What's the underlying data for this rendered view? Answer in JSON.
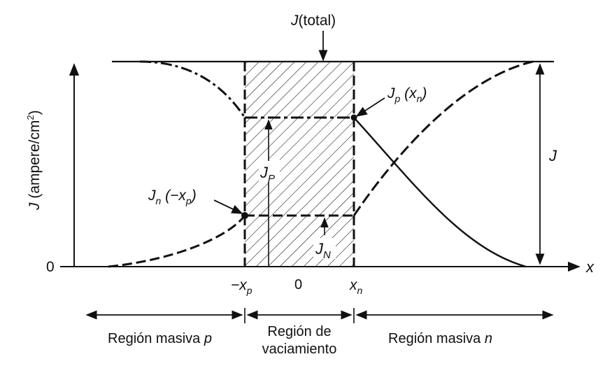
{
  "labels": {
    "j_total_italic": "J",
    "j_total_rest": "(total)",
    "y_axis_italic": "J",
    "y_axis_rest": " (ampere/cm",
    "y_axis_sup": "2",
    "y_axis_close": ")",
    "zero_y": "0",
    "x_axis": "x",
    "j_right": "J",
    "jp_main": "J",
    "jp_sub": "p",
    "jp_arg_open": " (x",
    "jp_arg_sub": "n",
    "jp_arg_close": ")",
    "jn_main": "J",
    "jn_sub": "n",
    "jn_arg_open": " (−x",
    "jn_arg_sub": "p",
    "jn_arg_close": ")",
    "JP_main": "J",
    "JP_sub": "P",
    "JN_main": "J",
    "JN_sub": "N"
  },
  "ticks": {
    "neg_xp_prefix": "−x",
    "neg_xp_sub": "p",
    "zero": "0",
    "xn_main": "x",
    "xn_sub": "n"
  },
  "regions": {
    "p_bulk_text": "Región masiva ",
    "p_bulk_letter": "p",
    "depletion_line1": "Región de",
    "depletion_line2": "vaciamiento",
    "n_bulk_text": "Región masiva ",
    "n_bulk_letter": "n"
  }
}
